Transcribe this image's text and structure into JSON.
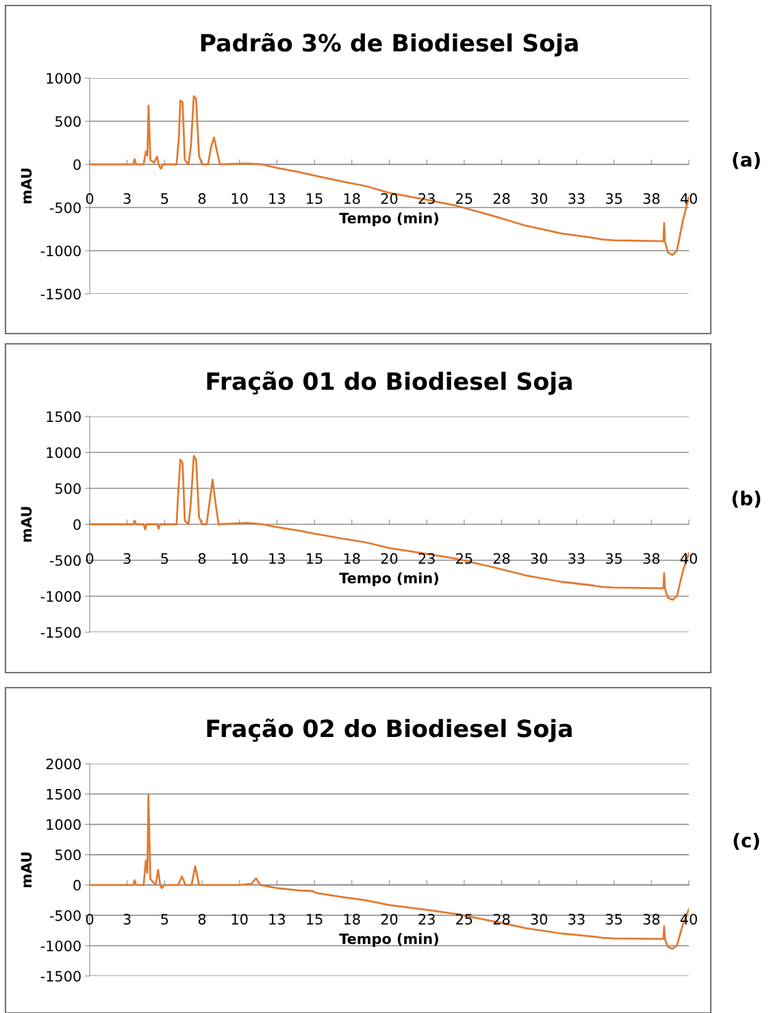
{
  "chart_data": [
    {
      "type": "line",
      "title": "Padrão 3% de Biodiesel Soja",
      "xlabel": "Tempo (min)",
      "ylabel": "mAU",
      "annotations": [
        "(a)"
      ],
      "grid": "y",
      "marker": "none",
      "line_style": "solid",
      "xlim": [
        0,
        40
      ],
      "ylim": [
        -1500,
        1000
      ],
      "yticks": [
        -1500,
        -1000,
        -500,
        0,
        500,
        1000
      ],
      "xticks": [
        0,
        {
          "value": 2.5,
          "label": "3"
        },
        5,
        {
          "value": 7.5,
          "label": "8"
        },
        10,
        {
          "value": 12.5,
          "label": "13"
        },
        15,
        {
          "value": 17.5,
          "label": "18"
        },
        20,
        {
          "value": 22.5,
          "label": "23"
        },
        25,
        {
          "value": 27.5,
          "label": "28"
        },
        30,
        {
          "value": 32.5,
          "label": "33"
        },
        35,
        {
          "value": 37.5,
          "label": "38"
        },
        40
      ],
      "series": [
        {
          "color": "#e07b30",
          "x": [
            0,
            2.9,
            3.0,
            3.1,
            3.6,
            3.75,
            3.85,
            3.93,
            4.05,
            4.3,
            4.5,
            4.6,
            4.75,
            4.9,
            5.8,
            5.95,
            6.05,
            6.2,
            6.35,
            6.6,
            6.75,
            6.95,
            7.1,
            7.3,
            7.5,
            7.9,
            8.1,
            8.3,
            8.5,
            8.7,
            10.5,
            11.5,
            12.5,
            14,
            15,
            16.9,
            18.4,
            20,
            22.5,
            24.5,
            27,
            29.1,
            31.5,
            33.6,
            34.2,
            35,
            38.3,
            38.35,
            38.4,
            38.6,
            38.9,
            39.2,
            39.6,
            40
          ],
          "values": [
            0,
            0,
            60,
            0,
            0,
            150,
            100,
            680,
            50,
            20,
            90,
            0,
            -50,
            0,
            0,
            300,
            740,
            720,
            50,
            0,
            200,
            790,
            760,
            100,
            0,
            0,
            200,
            310,
            150,
            0,
            10,
            0,
            -40,
            -90,
            -130,
            -200,
            -250,
            -330,
            -410,
            -480,
            -600,
            -710,
            -800,
            -850,
            -870,
            -880,
            -890,
            -680,
            -890,
            -1020,
            -1050,
            -1000,
            -650,
            -380
          ]
        }
      ]
    },
    {
      "type": "line",
      "title": "Fração 01 do Biodiesel Soja",
      "xlabel": "Tempo (min)",
      "ylabel": "mAU",
      "annotations": [
        "(b)"
      ],
      "grid": "y",
      "marker": "none",
      "line_style": "solid",
      "xlim": [
        0,
        40
      ],
      "ylim": [
        -1500,
        1500
      ],
      "yticks": [
        -1500,
        -1000,
        -500,
        0,
        500,
        1000,
        1500
      ],
      "xticks": [
        0,
        {
          "value": 2.5,
          "label": "3"
        },
        5,
        {
          "value": 7.5,
          "label": "8"
        },
        10,
        {
          "value": 12.5,
          "label": "13"
        },
        15,
        {
          "value": 17.5,
          "label": "18"
        },
        20,
        {
          "value": 22.5,
          "label": "23"
        },
        25,
        {
          "value": 27.5,
          "label": "28"
        },
        30,
        {
          "value": 32.5,
          "label": "33"
        },
        35,
        {
          "value": 37.5,
          "label": "38"
        },
        40
      ],
      "series": [
        {
          "color": "#e07b30",
          "x": [
            0,
            2.9,
            3.0,
            3.1,
            3.6,
            3.7,
            3.8,
            4.5,
            4.6,
            4.7,
            5.8,
            5.9,
            6.05,
            6.2,
            6.35,
            6.6,
            6.75,
            6.95,
            7.1,
            7.3,
            7.5,
            7.8,
            8.0,
            8.2,
            8.4,
            8.6,
            10.5,
            11.5,
            12.5,
            14,
            15,
            16.9,
            18.4,
            20,
            22.5,
            24.5,
            27,
            29.1,
            31.5,
            33.6,
            34.2,
            35,
            38.3,
            38.35,
            38.4,
            38.6,
            38.9,
            39.2,
            39.6,
            40
          ],
          "values": [
            0,
            0,
            50,
            0,
            0,
            -70,
            0,
            0,
            -60,
            0,
            0,
            400,
            900,
            850,
            50,
            0,
            300,
            950,
            900,
            100,
            0,
            0,
            300,
            620,
            300,
            0,
            20,
            0,
            -40,
            -90,
            -130,
            -200,
            -250,
            -330,
            -410,
            -480,
            -600,
            -710,
            -800,
            -850,
            -870,
            -880,
            -890,
            -680,
            -890,
            -1020,
            -1050,
            -1000,
            -650,
            -400
          ]
        }
      ]
    },
    {
      "type": "line",
      "title": "Fração 02 do Biodiesel Soja",
      "xlabel": "Tempo (min)",
      "ylabel": "mAU",
      "annotations": [
        "(c)"
      ],
      "grid": "y",
      "marker": "none",
      "line_style": "solid",
      "xlim": [
        0,
        40
      ],
      "ylim": [
        -1500,
        2000
      ],
      "yticks": [
        -1500,
        -1000,
        -500,
        0,
        500,
        1000,
        1500,
        2000
      ],
      "xticks": [
        0,
        {
          "value": 2.5,
          "label": "3"
        },
        5,
        {
          "value": 7.5,
          "label": "8"
        },
        10,
        {
          "value": 12.5,
          "label": "13"
        },
        15,
        {
          "value": 17.5,
          "label": "18"
        },
        20,
        {
          "value": 22.5,
          "label": "23"
        },
        25,
        {
          "value": 27.5,
          "label": "28"
        },
        30,
        {
          "value": 32.5,
          "label": "33"
        },
        35,
        {
          "value": 37.5,
          "label": "38"
        },
        40
      ],
      "series": [
        {
          "color": "#e07b30",
          "x": [
            0,
            2.9,
            3.0,
            3.1,
            3.6,
            3.75,
            3.85,
            3.92,
            4.05,
            4.4,
            4.57,
            4.7,
            4.8,
            5.0,
            5.9,
            6.16,
            6.4,
            6.8,
            7.04,
            7.3,
            7.6,
            10.0,
            10.8,
            11.1,
            11.4,
            12.5,
            14,
            14.9,
            15.1,
            16.9,
            18.4,
            20,
            22.5,
            24.5,
            27,
            29.1,
            31.5,
            33.6,
            34.2,
            35,
            38.3,
            38.35,
            38.4,
            38.6,
            38.9,
            39.2,
            39.6,
            40
          ],
          "values": [
            0,
            0,
            80,
            0,
            0,
            400,
            200,
            1480,
            100,
            0,
            250,
            0,
            -50,
            0,
            0,
            140,
            0,
            0,
            310,
            0,
            0,
            0,
            20,
            110,
            0,
            -50,
            -90,
            -100,
            -130,
            -200,
            -250,
            -330,
            -410,
            -480,
            -600,
            -710,
            -800,
            -850,
            -870,
            -880,
            -890,
            -680,
            -890,
            -1020,
            -1050,
            -1000,
            -650,
            -400
          ]
        }
      ]
    }
  ]
}
